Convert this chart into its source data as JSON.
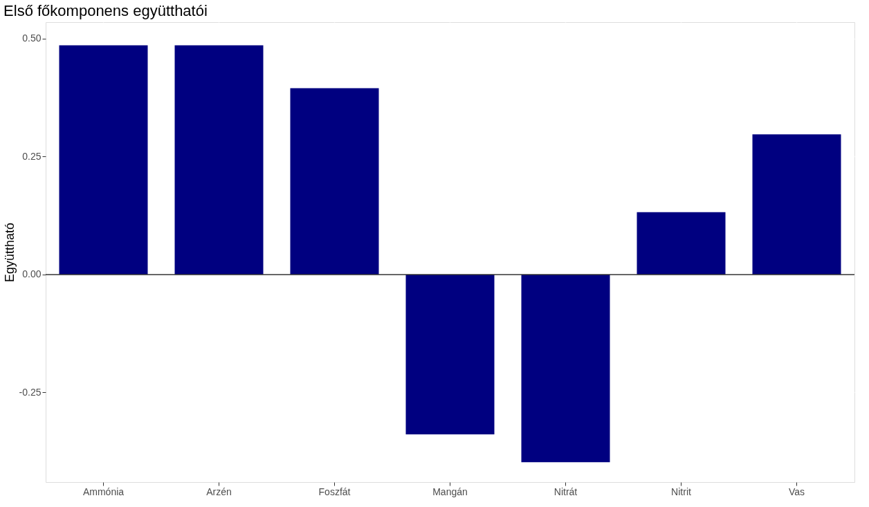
{
  "chart_data": {
    "type": "bar",
    "title": "Első főkomponens együtthatói",
    "ylabel": "Együttható",
    "categories": [
      "Ammónia",
      "Arzén",
      "Foszfát",
      "Mangán",
      "Nitrát",
      "Nitrit",
      "Vas"
    ],
    "series": [
      {
        "color": "#000080",
        "values": [
          0.486,
          0.486,
          0.395,
          -0.339,
          -0.398,
          0.132,
          0.297
        ]
      }
    ],
    "ylim": [
      -0.44,
      0.535
    ],
    "yticks": [
      {
        "value": -0.25,
        "label": "-0.25"
      },
      {
        "value": 0,
        "label": "0.00"
      },
      {
        "value": 0.25,
        "label": "0.25"
      },
      {
        "value": 0.5,
        "label": "0.50"
      }
    ],
    "ref_lines": [
      {
        "axis": "y",
        "value": 0,
        "color": "#333333"
      }
    ],
    "grid": true
  }
}
